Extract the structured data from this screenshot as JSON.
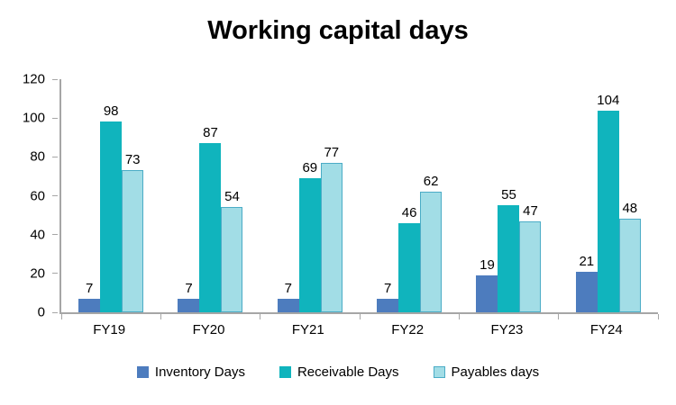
{
  "title": "Working capital days",
  "chart_data": {
    "type": "bar",
    "title": "Working capital days",
    "categories": [
      "FY19",
      "FY20",
      "FY21",
      "FY22",
      "FY23",
      "FY24"
    ],
    "series": [
      {
        "name": "Inventory Days",
        "color": "#4d7cbe",
        "border_color": null,
        "values": [
          7,
          7,
          7,
          7,
          19,
          21
        ]
      },
      {
        "name": "Receivable Days",
        "color": "#10b4bd",
        "border_color": null,
        "values": [
          98,
          87,
          69,
          46,
          55,
          104
        ]
      },
      {
        "name": "Payables days",
        "color": "#a2dde6",
        "border_color": "#4bacc6",
        "values": [
          73,
          54,
          77,
          62,
          47,
          48
        ]
      }
    ],
    "xlabel": "",
    "ylabel": "",
    "ylim": [
      0,
      120
    ],
    "ytick_step": 20,
    "ytick_labels": [
      "0",
      "20",
      "40",
      "60",
      "80",
      "100",
      "120"
    ],
    "grid": false,
    "data_labels": true,
    "legend_position": "bottom",
    "axis_color": "#a6a6a6",
    "text_color": "#000000"
  }
}
